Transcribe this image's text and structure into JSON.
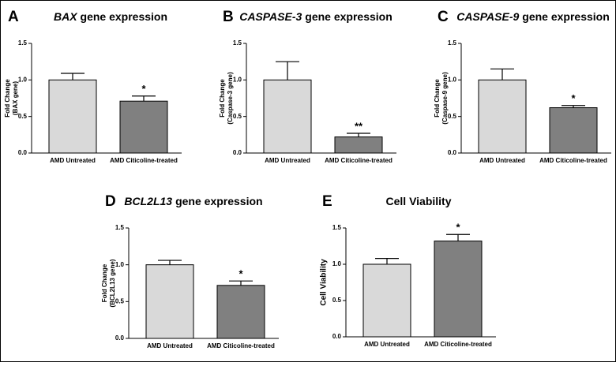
{
  "chart_data": [
    {
      "type": "bar",
      "panel": "A",
      "title_italic": "BAX",
      "title": "gene expression",
      "ylabel": [
        "Fold Change",
        "(BAX gene)"
      ],
      "categories": [
        "AMD Untreated",
        "AMD Citicoline-treated"
      ],
      "series": [
        {
          "values": [
            1.0,
            0.71
          ],
          "errors": [
            0.09,
            0.07
          ],
          "colors": [
            "#d9d9d9",
            "#808080"
          ],
          "significance": [
            null,
            "*"
          ]
        }
      ],
      "ylim": [
        0,
        1.5
      ],
      "yticks": [
        {
          "value": 0,
          "label": "0.0"
        },
        0.5,
        {
          "value": 1,
          "label": "1.0"
        },
        1.5
      ]
    },
    {
      "type": "bar",
      "panel": "B",
      "title_italic": "CASPASE-3",
      "title": "gene expression",
      "ylabel": [
        "Fold Change",
        "(Caspase-3 gene)"
      ],
      "categories": [
        "AMD Untreated",
        "AMD Citicoline-treated"
      ],
      "series": [
        {
          "values": [
            1.0,
            0.22
          ],
          "errors": [
            0.25,
            0.05
          ],
          "colors": [
            "#d9d9d9",
            "#808080"
          ],
          "significance": [
            null,
            "**"
          ]
        }
      ],
      "ylim": [
        0,
        1.5
      ],
      "yticks": [
        {
          "value": 0,
          "label": "0.0"
        },
        0.5,
        {
          "value": 1,
          "label": "1.0"
        },
        1.5
      ]
    },
    {
      "type": "bar",
      "panel": "C",
      "title_italic": "CASPASE-9",
      "title": "gene expression",
      "ylabel": [
        "Fold Change",
        "(Caspase-9 gene)"
      ],
      "categories": [
        "AMD Untreated",
        "AMD Citicoline-treated"
      ],
      "series": [
        {
          "values": [
            1.0,
            0.62
          ],
          "errors": [
            0.15,
            0.03
          ],
          "colors": [
            "#d9d9d9",
            "#808080"
          ],
          "significance": [
            null,
            "*"
          ]
        }
      ],
      "ylim": [
        0,
        1.5
      ],
      "yticks": [
        {
          "value": 0,
          "label": "0.0"
        },
        0.5,
        {
          "value": 1,
          "label": "1.0"
        },
        1.5
      ]
    },
    {
      "type": "bar",
      "panel": "D",
      "title_italic": "BCL2L13",
      "title": "gene expression",
      "ylabel": [
        "Fold Change",
        "(BCL2L13 gene)"
      ],
      "categories": [
        "AMD Untreated",
        "AMD Citicoline-treated"
      ],
      "series": [
        {
          "values": [
            1.0,
            0.72
          ],
          "errors": [
            0.06,
            0.06
          ],
          "colors": [
            "#d9d9d9",
            "#808080"
          ],
          "significance": [
            null,
            "*"
          ]
        }
      ],
      "ylim": [
        0,
        1.5
      ],
      "yticks": [
        {
          "value": 0,
          "label": "0.0"
        },
        0.5,
        {
          "value": 1,
          "label": "1.0"
        },
        1.5
      ]
    },
    {
      "type": "bar",
      "panel": "E",
      "title": "Cell Viability",
      "ylabel": [
        "Cell Viability"
      ],
      "categories": [
        "AMD Untreated",
        "AMD Citicoline-treated"
      ],
      "series": [
        {
          "values": [
            1.0,
            1.32
          ],
          "errors": [
            0.08,
            0.09
          ],
          "colors": [
            "#d9d9d9",
            "#808080"
          ],
          "significance": [
            null,
            "*"
          ]
        }
      ],
      "ylim": [
        0,
        1.5
      ],
      "yticks": [
        {
          "value": 0,
          "label": "0.0"
        },
        0.5,
        {
          "value": 1,
          "label": "1.0"
        },
        1.5
      ]
    }
  ]
}
